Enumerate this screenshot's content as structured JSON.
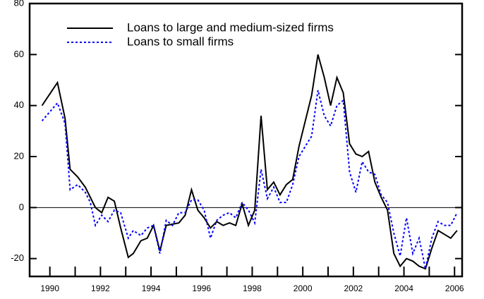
{
  "chart_data": {
    "type": "line",
    "x": [
      1989.69,
      1990.3,
      1990.6,
      1990.8,
      1991.1,
      1991.4,
      1991.6,
      1991.8,
      1992.05,
      1992.3,
      1992.55,
      1992.8,
      1993.1,
      1993.3,
      1993.6,
      1993.85,
      1994.1,
      1994.35,
      1994.6,
      1994.85,
      1995.1,
      1995.35,
      1995.6,
      1995.85,
      1996.1,
      1996.35,
      1996.6,
      1996.85,
      1997.1,
      1997.35,
      1997.6,
      1997.85,
      1998.1,
      1998.35,
      1998.6,
      1998.85,
      1999.1,
      1999.35,
      1999.6,
      1999.85,
      2000.1,
      2000.35,
      2000.6,
      2000.85,
      2001.1,
      2001.35,
      2001.6,
      2001.85,
      2002.1,
      2002.35,
      2002.6,
      2002.85,
      2003.1,
      2003.35,
      2003.6,
      2003.85,
      2004.1,
      2004.35,
      2004.6,
      2004.85,
      2005.1,
      2005.35,
      2005.6,
      2005.85,
      2006.1
    ],
    "series": [
      {
        "name": "Loans to large and medium-sized firms",
        "color": "#000000",
        "style": "solid",
        "values": [
          40,
          49,
          35,
          15,
          12,
          8,
          4,
          0,
          -2,
          4,
          2.5,
          -8,
          -19.5,
          -18,
          -13,
          -12,
          -7,
          -17,
          -7,
          -6.5,
          -6,
          -3,
          7,
          -1,
          -4,
          -8,
          -5.5,
          -7,
          -6,
          -7,
          1.5,
          -7,
          -1,
          36,
          7,
          10,
          5,
          9,
          11,
          24,
          34,
          44,
          60,
          51,
          40,
          51,
          45,
          25,
          21,
          20,
          22,
          10,
          4,
          -1,
          -18,
          -23,
          -20,
          -21,
          -23,
          -24,
          -16,
          -9,
          -10.5,
          -12,
          -9
        ]
      },
      {
        "name": "Loans to small firms",
        "color": "#0000ff",
        "style": "dotted",
        "values": [
          34,
          41,
          33,
          7,
          9,
          6,
          2,
          -7,
          -3,
          -5.5,
          -1,
          -2,
          -12,
          -9,
          -11,
          -8,
          -7,
          -18,
          -5,
          -7,
          -2,
          -2,
          3,
          3,
          -1,
          -12,
          -5,
          -3,
          -2,
          -4,
          2,
          -1,
          -6,
          15,
          3.5,
          8,
          2,
          2,
          9,
          20,
          24,
          28,
          46,
          36,
          32,
          40,
          42,
          14,
          6,
          18,
          14,
          13,
          5,
          2,
          -10,
          -19,
          -4,
          -18,
          -12,
          -24,
          -12,
          -5.5,
          -7,
          -7,
          -2
        ]
      }
    ],
    "xlim": [
      1989.2,
      2006.3
    ],
    "ylim": [
      -27,
      80
    ],
    "xticks": [
      1990,
      1992,
      1994,
      1996,
      1998,
      2000,
      2002,
      2004,
      2006
    ],
    "x_minor_ticks": [
      1991,
      1993,
      1995,
      1997,
      1999,
      2001,
      2003,
      2005
    ],
    "yticks": [
      -20,
      0,
      20,
      40,
      60,
      80
    ],
    "zero_line": true
  }
}
